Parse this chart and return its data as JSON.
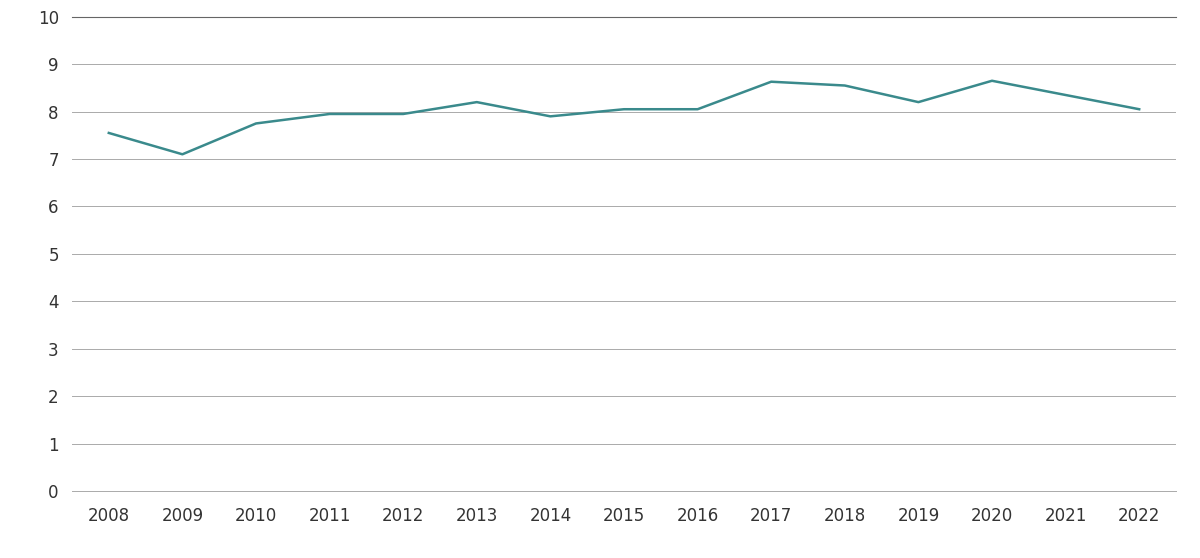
{
  "years": [
    2008,
    2009,
    2010,
    2011,
    2012,
    2013,
    2014,
    2015,
    2016,
    2017,
    2018,
    2019,
    2020,
    2021,
    2022
  ],
  "values": [
    7.55,
    7.1,
    7.75,
    7.95,
    7.95,
    8.2,
    7.9,
    8.05,
    8.05,
    8.63,
    8.55,
    8.2,
    8.65,
    8.35,
    8.05
  ],
  "line_color": "#3a8a8c",
  "line_width": 1.8,
  "ylim": [
    0,
    10
  ],
  "yticks": [
    0,
    1,
    2,
    3,
    4,
    5,
    6,
    7,
    8,
    9,
    10
  ],
  "background_color": "#ffffff",
  "grid_color": "#aaaaaa",
  "top_border_color": "#666666",
  "tick_label_fontsize": 12,
  "font_color": "#333333"
}
